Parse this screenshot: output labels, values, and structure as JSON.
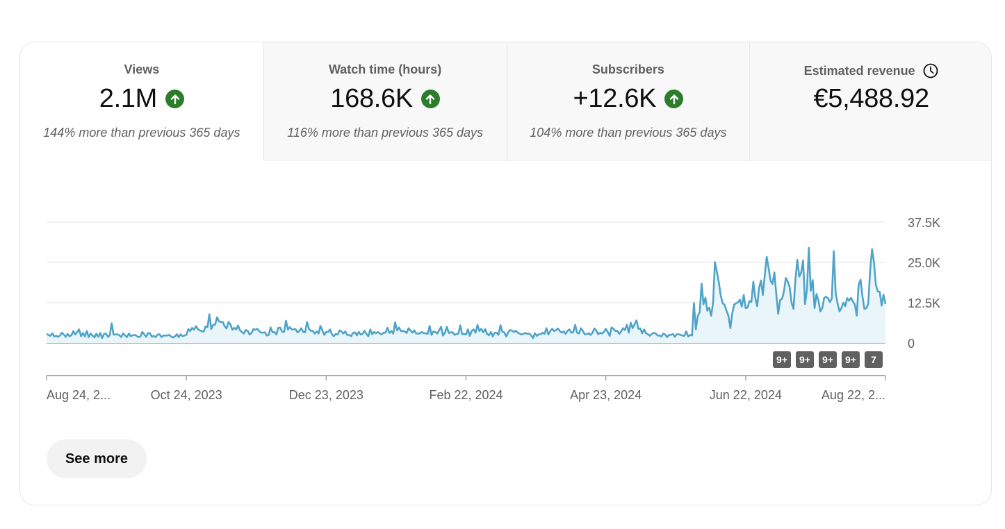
{
  "metrics": [
    {
      "label": "Views",
      "value": "2.1M",
      "comparison": "144% more than previous 365 days",
      "trend": "up",
      "icon": "arrow-up-icon"
    },
    {
      "label": "Watch time (hours)",
      "value": "168.6K",
      "comparison": "116% more than previous 365 days",
      "trend": "up",
      "icon": "arrow-up-icon"
    },
    {
      "label": "Subscribers",
      "value": "+12.6K",
      "comparison": "104% more than previous 365 days",
      "trend": "up",
      "icon": "arrow-up-icon"
    },
    {
      "label": "Estimated revenue",
      "value": "€5,488.92",
      "comparison": "",
      "icon": "clock-icon"
    }
  ],
  "see_more_label": "See more",
  "colors": {
    "line": "#4fa3c9",
    "area": "#e9f5f8",
    "trend_up": "#2b7d2b",
    "badge": "#606060"
  },
  "chart_data": {
    "type": "area",
    "series": [
      {
        "values": [
          2800,
          2500,
          2200,
          3000,
          2000,
          2200,
          1900,
          2300,
          3200,
          2600,
          1900,
          2800,
          2100,
          2400,
          3700,
          2600,
          3400,
          4200,
          2100,
          3100,
          2000,
          3700,
          1800,
          2900,
          2300,
          1700,
          2900,
          1900,
          3100,
          1500,
          2800,
          2900,
          1900,
          2400,
          6100,
          2600,
          2600,
          2700,
          2400,
          1800,
          3000,
          2300,
          1800,
          2900,
          2100,
          2400,
          2500,
          2200,
          1800,
          2000,
          3400,
          2700,
          1900,
          3100,
          3000,
          1900,
          2200,
          1800,
          2600,
          2700,
          1800,
          2300,
          2300,
          2300,
          2500,
          2000,
          1700,
          2000,
          2700,
          1800,
          2700,
          2100,
          2300,
          2500,
          4300,
          3700,
          4700,
          4100,
          5200,
          4300,
          3900,
          3700,
          3500,
          5100,
          4900,
          8900,
          4300,
          5600,
          5700,
          8000,
          6700,
          6500,
          6500,
          5200,
          4500,
          6500,
          5800,
          4100,
          4700,
          4200,
          5400,
          3900,
          3400,
          2900,
          4000,
          3800,
          2600,
          3100,
          4300,
          4100,
          4400,
          3700,
          3200,
          3200,
          3300,
          2300,
          2500,
          4800,
          3300,
          3400,
          2600,
          4700,
          4700,
          3500,
          3400,
          6900,
          4200,
          4900,
          4200,
          4200,
          4300,
          3300,
          3700,
          4600,
          3400,
          3300,
          6500,
          4400,
          3800,
          3800,
          2900,
          3600,
          2900,
          5300,
          3900,
          2500,
          3400,
          3400,
          4200,
          2700,
          2100,
          2800,
          2600,
          3900,
          3600,
          2900,
          3600,
          2500,
          2500,
          2100,
          3100,
          3300,
          2400,
          3400,
          2600,
          2800,
          3800,
          2800,
          2100,
          4200,
          2700,
          3400,
          3000,
          3400,
          2900,
          2700,
          3200,
          3200,
          4700,
          3100,
          3700,
          2900,
          6400,
          3900,
          4800,
          3700,
          3700,
          3600,
          3100,
          4600,
          3900,
          3200,
          3900,
          2900,
          2900,
          3000,
          3400,
          3000,
          3000,
          2800,
          5300,
          2500,
          3600,
          3400,
          2900,
          4000,
          5000,
          2300,
          3200,
          5000,
          3100,
          3300,
          3300,
          2500,
          2800,
          2800,
          5500,
          2700,
          2800,
          2600,
          4200,
          2200,
          3800,
          4200,
          3200,
          5600,
          3700,
          4400,
          3300,
          4300,
          2800,
          2400,
          3400,
          2000,
          3200,
          3200,
          2500,
          5500,
          3400,
          3300,
          2000,
          3300,
          4000,
          3800,
          3400,
          3800,
          3200,
          2900,
          2600,
          2800,
          3100,
          2800,
          2900,
          2400,
          1500,
          3000,
          2200,
          2700,
          2700,
          3200,
          2800,
          4600,
          2600,
          3700,
          4400,
          3700,
          4000,
          4500,
          3700,
          3200,
          3600,
          2800,
          3800,
          4200,
          3200,
          3300,
          5600,
          3200,
          2900,
          4600,
          3700,
          2700,
          2700,
          3000,
          2500,
          3100,
          4500,
          3900,
          2700,
          3200,
          2900,
          3400,
          4400,
          3400,
          2200,
          4800,
          4400,
          3700,
          3800,
          2800,
          3600,
          4600,
          4000,
          5700,
          3200,
          6300,
          4600,
          5800,
          7000,
          4400,
          4500,
          3000,
          4200,
          3000,
          2700,
          2200,
          2800,
          3100,
          3000,
          2300,
          2300,
          2000,
          2900,
          2600,
          1800,
          2500,
          2500,
          2800,
          1900,
          2700,
          2700,
          2500,
          2300,
          2200,
          3600,
          2000,
          2500,
          2300,
          12400,
          4200,
          8400,
          9500,
          18400,
          12000,
          14000,
          10000,
          11000,
          8400,
          12600,
          25100,
          22000,
          18700,
          14700,
          12300,
          11800,
          10000,
          8500,
          4600,
          9100,
          11900,
          12300,
          12600,
          13400,
          11300,
          14900,
          10800,
          11000,
          13000,
          12700,
          19000,
          14100,
          11400,
          17000,
          19400,
          14900,
          21100,
          26700,
          23300,
          19300,
          18300,
          21900,
          15200,
          9000,
          13300,
          13700,
          16000,
          20200,
          19000,
          17300,
          12400,
          10600,
          19800,
          25800,
          20600,
          21800,
          25600,
          12100,
          16500,
          29500,
          16200,
          19500,
          10800,
          15200,
          13200,
          9800,
          10800,
          14000,
          14300,
          13900,
          12700,
          13800,
          28500,
          15400,
          12300,
          9800,
          10800,
          12500,
          11400,
          13900,
          13100,
          14000,
          12900,
          11900,
          8500,
          18000,
          19600,
          14500,
          10600,
          10800,
          12100,
          22600,
          29100,
          25000,
          18000,
          16000,
          15900,
          11600,
          15000,
          12100
        ]
      }
    ],
    "x_tick_labels": [
      "Aug 24, 2...",
      "Oct 24, 2023",
      "Dec 23, 2023",
      "Feb 22, 2024",
      "Apr 23, 2024",
      "Jun 22, 2024",
      "Aug 22, 2..."
    ],
    "y_tick_labels": [
      "0",
      "12.5K",
      "25.0K",
      "37.5K"
    ],
    "y_ticks": [
      0,
      12500,
      25000,
      37500
    ],
    "ylim": [
      0,
      37500
    ],
    "grid": true,
    "event_badges": [
      "9+",
      "9+",
      "9+",
      "9+",
      "7"
    ]
  }
}
